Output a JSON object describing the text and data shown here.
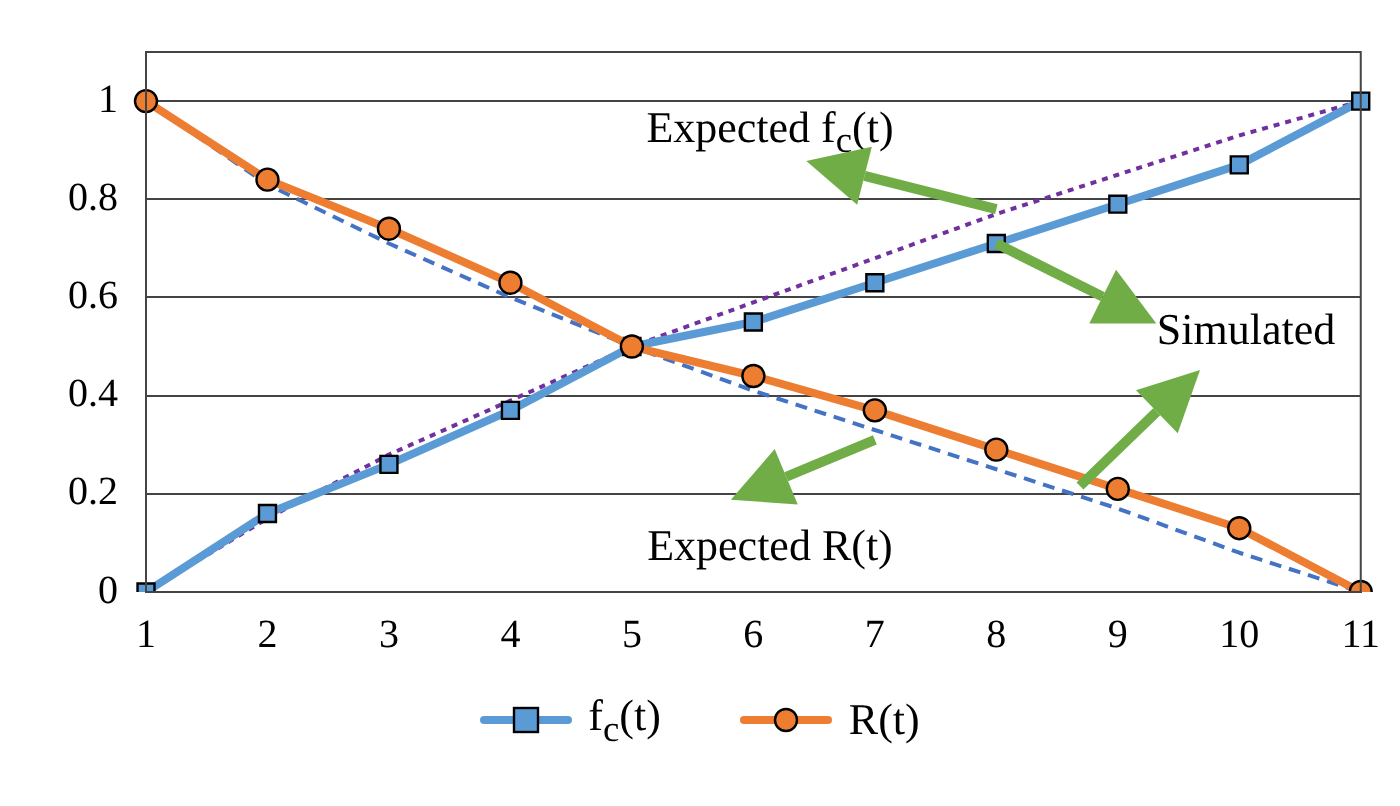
{
  "chart_data": {
    "type": "line",
    "categories": [
      "1",
      "2",
      "3",
      "4",
      "5",
      "6",
      "7",
      "8",
      "9",
      "10",
      "11"
    ],
    "series": [
      {
        "name": "f$_{c}$(t)",
        "color": "#5b9bd5",
        "marker": "square",
        "line_style": "solid",
        "values": [
          0,
          0.16,
          0.26,
          0.37,
          0.5,
          0.55,
          0.63,
          0.71,
          0.79,
          0.87,
          1
        ]
      },
      {
        "name": "R(t)",
        "color": "#ed7d31",
        "marker": "circle",
        "line_style": "solid",
        "values": [
          1,
          0.84,
          0.74,
          0.63,
          0.5,
          0.44,
          0.37,
          0.29,
          0.21,
          0.13,
          0
        ]
      },
      {
        "color": "#7030a0",
        "marker": "none",
        "line_style": "dotted",
        "values": [
          0,
          0.15,
          0.28,
          0.39,
          0.5,
          0.59,
          0.68,
          0.77,
          0.85,
          0.93,
          1
        ]
      },
      {
        "color": "#4472c4",
        "marker": "none",
        "line_style": "dashed",
        "values": [
          1,
          0.83,
          0.71,
          0.6,
          0.5,
          0.41,
          0.33,
          0.25,
          0.17,
          0.08,
          0
        ]
      }
    ],
    "ylim": [
      0,
      1.1
    ],
    "yticks": [
      0,
      0.2,
      0.4,
      0.6,
      0.8,
      1
    ],
    "grid": "y",
    "legend": "bottom",
    "annotations": [
      {
        "text": "Expected f$_{c}$(t)",
        "x": "8",
        "y": 0.78
      },
      {
        "text": "Simulated",
        "x": "8",
        "y": 0.71
      },
      {
        "text": "Expected R(t)",
        "x": "7",
        "y": 0.31
      }
    ]
  }
}
